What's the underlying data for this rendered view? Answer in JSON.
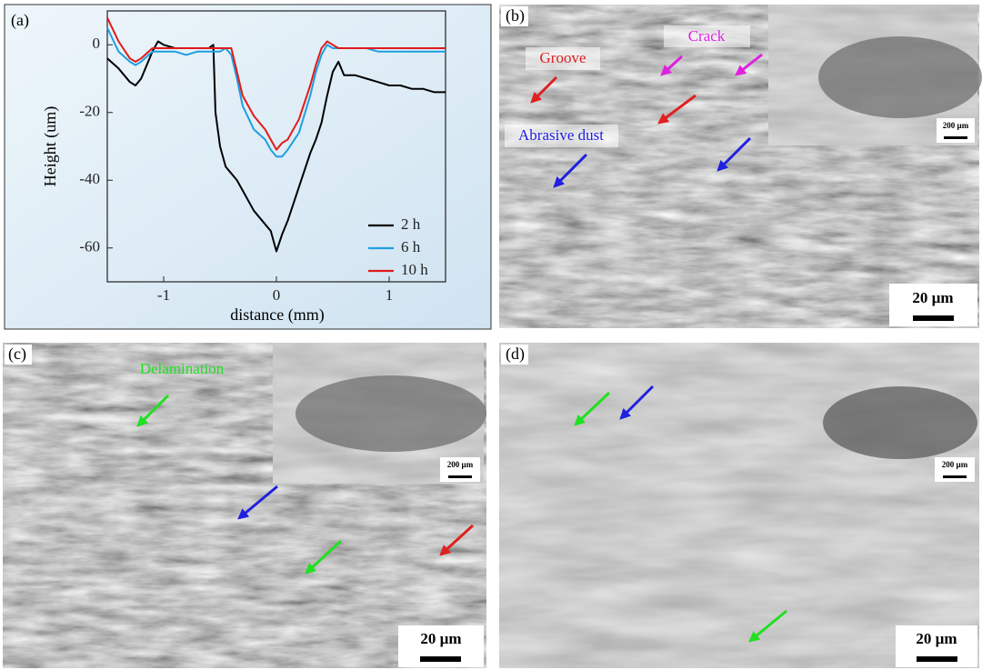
{
  "chart_data": {
    "type": "line",
    "label": "(a)",
    "xlabel": "distance (mm)",
    "ylabel": "Height (um)",
    "x": [
      -1.5,
      -1.4,
      -1.3,
      -1.25,
      -1.2,
      -1.1,
      -1.05,
      -1.0,
      -0.9,
      -0.8,
      -0.7,
      -0.6,
      -0.56,
      -0.54,
      -0.5,
      -0.45,
      -0.4,
      -0.35,
      -0.3,
      -0.2,
      -0.1,
      -0.05,
      0,
      0.05,
      0.1,
      0.2,
      0.3,
      0.35,
      0.4,
      0.45,
      0.5,
      0.55,
      0.6,
      0.7,
      0.8,
      0.9,
      1.0,
      1.1,
      1.2,
      1.3,
      1.4,
      1.5
    ],
    "series": [
      {
        "name": "2 h",
        "color": "#000000",
        "values": [
          -4,
          -7,
          -11,
          -12,
          -10,
          -2,
          1,
          0,
          -1,
          -1,
          -1,
          -1,
          0,
          -20,
          -30,
          -36,
          -38,
          -40,
          -43,
          -49,
          -53,
          -55,
          -61,
          -56,
          -52,
          -42,
          -32,
          -28,
          -23,
          -15,
          -8,
          -5,
          -9,
          -9,
          -10,
          -11,
          -12,
          -12,
          -13,
          -13,
          -14,
          -14
        ]
      },
      {
        "name": "6 h",
        "color": "#1f9fe0",
        "values": [
          5,
          -2,
          -5,
          -6,
          -5,
          -2,
          -2,
          -2,
          -2,
          -3,
          -2,
          -2,
          -2,
          -2,
          -2,
          -1,
          -3,
          -10,
          -18,
          -25,
          -28,
          -31,
          -33,
          -33,
          -31,
          -26,
          -15,
          -8,
          -3,
          0,
          -1,
          -1,
          -1,
          -1,
          -1,
          -2,
          -2,
          -2,
          -2,
          -2,
          -2,
          -2
        ]
      },
      {
        "name": "10 h",
        "color": "#e01b1b",
        "values": [
          8,
          1,
          -4,
          -5,
          -4,
          -1,
          -1,
          -1,
          -1,
          -1,
          -1,
          -1,
          -1,
          -1,
          -1,
          -1,
          -1,
          -8,
          -15,
          -21,
          -25,
          -28,
          -31,
          -29,
          -28,
          -22,
          -12,
          -6,
          -1,
          1,
          0,
          -1,
          -1,
          -1,
          -1,
          -1,
          -1,
          -1,
          -1,
          -1,
          -1,
          -1
        ]
      }
    ],
    "xlim": [
      -1.5,
      1.5
    ],
    "ylim": [
      -70,
      10
    ],
    "xticks": [
      -1,
      0,
      1
    ],
    "yticks": [
      0,
      -20,
      -40,
      -60
    ],
    "legend": "lower right"
  },
  "panels": [
    {
      "label": "(b)",
      "annotations": [
        "Groove",
        "Crack",
        "Abrasive dust"
      ],
      "inset_scale": "200 µm",
      "scale": "20 µm"
    },
    {
      "label": "(c)",
      "annotations": [
        "Delamination"
      ],
      "inset_scale": "200 µm",
      "scale": "20 µm"
    },
    {
      "label": "(d)",
      "inset_scale": "200 µm",
      "scale": "20 µm"
    }
  ]
}
